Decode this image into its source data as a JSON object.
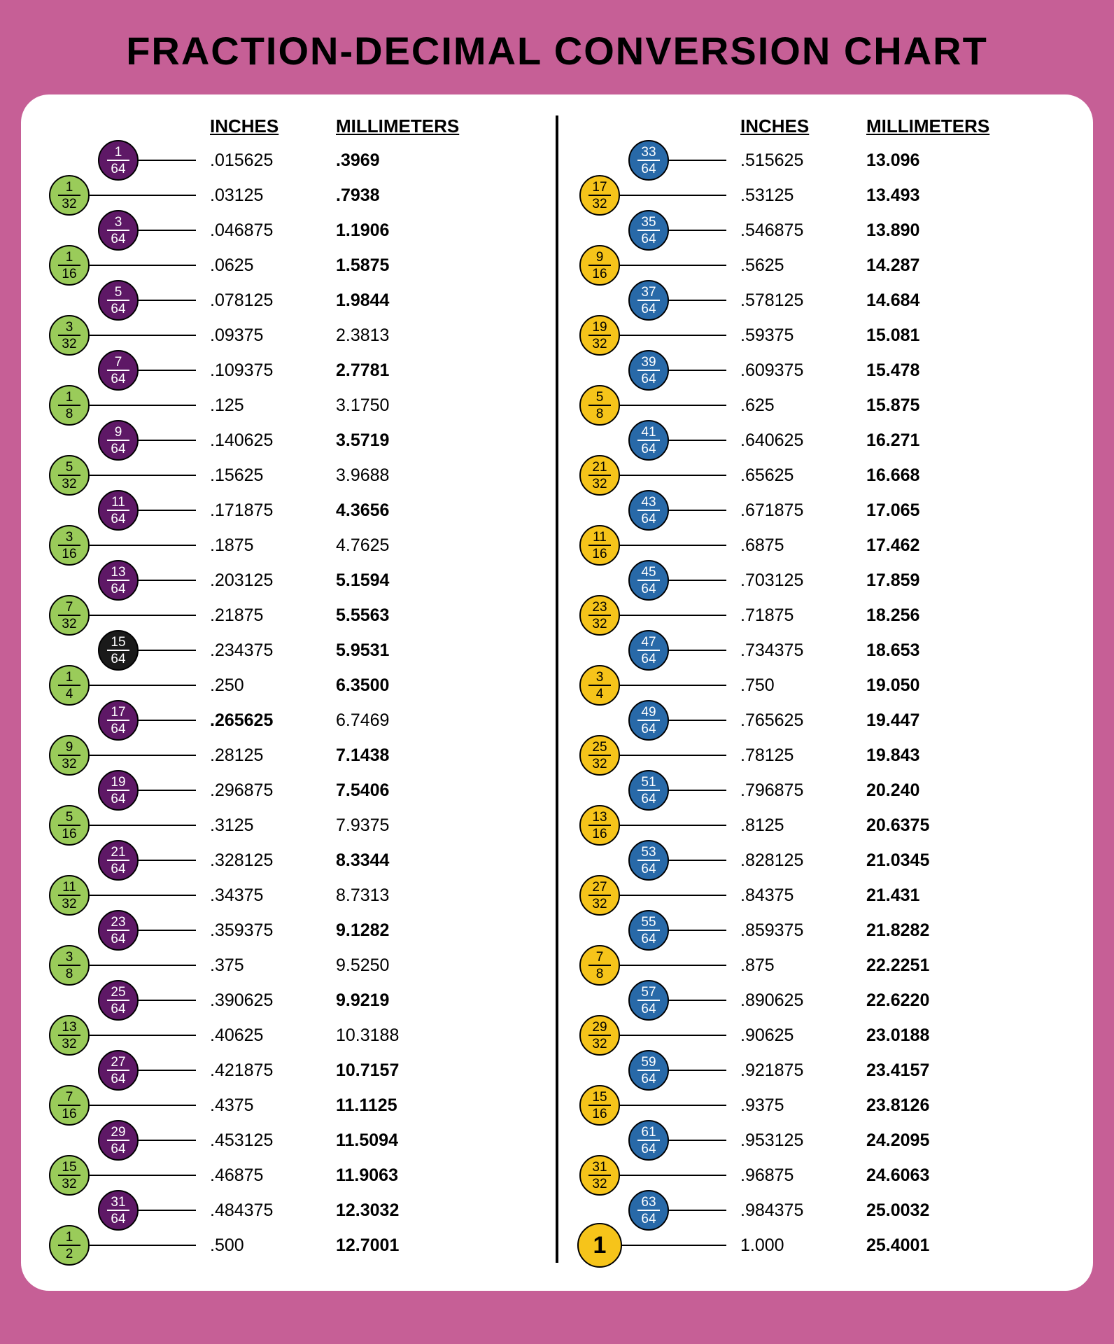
{
  "title": "FRACTION-DECIMAL CONVERSION CHART",
  "headers": {
    "inches": "INCHES",
    "mm": "MILLIMETERS"
  },
  "palette": {
    "green": {
      "fill": "#9acb5a",
      "stroke": "#000",
      "text": "#000",
      "bar": "#000"
    },
    "purple": {
      "fill": "#5e1866",
      "stroke": "#000",
      "text": "#fff",
      "bar": "#fff"
    },
    "black": {
      "fill": "#1a1a1a",
      "stroke": "#000",
      "text": "#fff",
      "bar": "#fff"
    },
    "yellow": {
      "fill": "#f6c41a",
      "stroke": "#000",
      "text": "#000",
      "bar": "#000"
    },
    "blue": {
      "fill": "#2869a8",
      "stroke": "#000",
      "text": "#fff",
      "bar": "#fff"
    }
  },
  "bg_color": "#c65f96",
  "panel_color": "#ffffff",
  "font_sizes": {
    "title": 56,
    "header": 26,
    "values": 25,
    "frac": 19
  },
  "left": [
    {
      "slot": 1,
      "n": "1",
      "d": "64",
      "color": "purple",
      "inches": ".015625",
      "mm": ".3969",
      "mb": true
    },
    {
      "slot": 0,
      "n": "1",
      "d": "32",
      "color": "green",
      "inches": ".03125",
      "mm": ".7938",
      "mb": true
    },
    {
      "slot": 1,
      "n": "3",
      "d": "64",
      "color": "purple",
      "inches": ".046875",
      "mm": "1.1906",
      "mb": true
    },
    {
      "slot": 0,
      "n": "1",
      "d": "16",
      "color": "green",
      "inches": ".0625",
      "mm": "1.5875",
      "mb": true
    },
    {
      "slot": 1,
      "n": "5",
      "d": "64",
      "color": "purple",
      "inches": ".078125",
      "mm": "1.9844",
      "mb": true
    },
    {
      "slot": 0,
      "n": "3",
      "d": "32",
      "color": "green",
      "inches": ".09375",
      "mm": "2.3813"
    },
    {
      "slot": 1,
      "n": "7",
      "d": "64",
      "color": "purple",
      "inches": ".109375",
      "mm": "2.7781",
      "mb": true
    },
    {
      "slot": 0,
      "n": "1",
      "d": "8",
      "color": "green",
      "inches": ".125",
      "mm": "3.1750"
    },
    {
      "slot": 1,
      "n": "9",
      "d": "64",
      "color": "purple",
      "inches": ".140625",
      "mm": "3.5719",
      "mb": true
    },
    {
      "slot": 0,
      "n": "5",
      "d": "32",
      "color": "green",
      "inches": ".15625",
      "mm": "3.9688"
    },
    {
      "slot": 1,
      "n": "11",
      "d": "64",
      "color": "purple",
      "inches": ".171875",
      "mm": "4.3656",
      "mb": true
    },
    {
      "slot": 0,
      "n": "3",
      "d": "16",
      "color": "green",
      "inches": ".1875",
      "mm": "4.7625"
    },
    {
      "slot": 1,
      "n": "13",
      "d": "64",
      "color": "purple",
      "inches": ".203125",
      "mm": "5.1594",
      "mb": true
    },
    {
      "slot": 0,
      "n": "7",
      "d": "32",
      "color": "green",
      "inches": ".21875",
      "mm": "5.5563",
      "mb": true
    },
    {
      "slot": 1,
      "n": "15",
      "d": "64",
      "color": "black",
      "inches": ".234375",
      "mm": "5.9531",
      "mb": true
    },
    {
      "slot": 0,
      "n": "1",
      "d": "4",
      "color": "green",
      "inches": ".250",
      "mm": "6.3500",
      "mb": true
    },
    {
      "slot": 1,
      "n": "17",
      "d": "64",
      "color": "purple",
      "inches": ".265625",
      "mm": "6.7469",
      "ib": true
    },
    {
      "slot": 0,
      "n": "9",
      "d": "32",
      "color": "green",
      "inches": ".28125",
      "mm": "7.1438",
      "mb": true
    },
    {
      "slot": 1,
      "n": "19",
      "d": "64",
      "color": "purple",
      "inches": ".296875",
      "mm": "7.5406",
      "mb": true
    },
    {
      "slot": 0,
      "n": "5",
      "d": "16",
      "color": "green",
      "inches": ".3125",
      "mm": "7.9375"
    },
    {
      "slot": 1,
      "n": "21",
      "d": "64",
      "color": "purple",
      "inches": ".328125",
      "mm": "8.3344",
      "mb": true
    },
    {
      "slot": 0,
      "n": "11",
      "d": "32",
      "color": "green",
      "inches": ".34375",
      "mm": "8.7313"
    },
    {
      "slot": 1,
      "n": "23",
      "d": "64",
      "color": "purple",
      "inches": ".359375",
      "mm": "9.1282",
      "mb": true
    },
    {
      "slot": 0,
      "n": "3",
      "d": "8",
      "color": "green",
      "inches": ".375",
      "mm": "9.5250"
    },
    {
      "slot": 1,
      "n": "25",
      "d": "64",
      "color": "purple",
      "inches": ".390625",
      "mm": "9.9219",
      "mb": true
    },
    {
      "slot": 0,
      "n": "13",
      "d": "32",
      "color": "green",
      "inches": ".40625",
      "mm": "10.3188"
    },
    {
      "slot": 1,
      "n": "27",
      "d": "64",
      "color": "purple",
      "inches": ".421875",
      "mm": "10.7157",
      "mb": true
    },
    {
      "slot": 0,
      "n": "7",
      "d": "16",
      "color": "green",
      "inches": ".4375",
      "mm": "11.1125",
      "mb": true
    },
    {
      "slot": 1,
      "n": "29",
      "d": "64",
      "color": "purple",
      "inches": ".453125",
      "mm": "11.5094",
      "mb": true
    },
    {
      "slot": 0,
      "n": "15",
      "d": "32",
      "color": "green",
      "inches": ".46875",
      "mm": "11.9063",
      "mb": true
    },
    {
      "slot": 1,
      "n": "31",
      "d": "64",
      "color": "purple",
      "inches": ".484375",
      "mm": "12.3032",
      "mb": true
    },
    {
      "slot": 0,
      "n": "1",
      "d": "2",
      "color": "green",
      "inches": ".500",
      "mm": "12.7001",
      "mb": true
    }
  ],
  "right": [
    {
      "slot": 1,
      "n": "33",
      "d": "64",
      "color": "blue",
      "inches": ".515625",
      "mm": "13.096",
      "mb": true
    },
    {
      "slot": 0,
      "n": "17",
      "d": "32",
      "color": "yellow",
      "inches": ".53125",
      "mm": "13.493",
      "mb": true
    },
    {
      "slot": 1,
      "n": "35",
      "d": "64",
      "color": "blue",
      "inches": ".546875",
      "mm": "13.890",
      "mb": true
    },
    {
      "slot": 0,
      "n": "9",
      "d": "16",
      "color": "yellow",
      "inches": ".5625",
      "mm": "14.287",
      "mb": true
    },
    {
      "slot": 1,
      "n": "37",
      "d": "64",
      "color": "blue",
      "inches": ".578125",
      "mm": "14.684",
      "mb": true
    },
    {
      "slot": 0,
      "n": "19",
      "d": "32",
      "color": "yellow",
      "inches": ".59375",
      "mm": "15.081",
      "mb": true
    },
    {
      "slot": 1,
      "n": "39",
      "d": "64",
      "color": "blue",
      "inches": ".609375",
      "mm": "15.478",
      "mb": true
    },
    {
      "slot": 0,
      "n": "5",
      "d": "8",
      "color": "yellow",
      "inches": ".625",
      "mm": "15.875",
      "mb": true
    },
    {
      "slot": 1,
      "n": "41",
      "d": "64",
      "color": "blue",
      "inches": ".640625",
      "mm": "16.271",
      "mb": true
    },
    {
      "slot": 0,
      "n": "21",
      "d": "32",
      "color": "yellow",
      "inches": ".65625",
      "mm": "16.668",
      "mb": true
    },
    {
      "slot": 1,
      "n": "43",
      "d": "64",
      "color": "blue",
      "inches": ".671875",
      "mm": "17.065",
      "mb": true
    },
    {
      "slot": 0,
      "n": "11",
      "d": "16",
      "color": "yellow",
      "inches": ".6875",
      "mm": "17.462",
      "mb": true
    },
    {
      "slot": 1,
      "n": "45",
      "d": "64",
      "color": "blue",
      "inches": ".703125",
      "mm": "17.859",
      "mb": true
    },
    {
      "slot": 0,
      "n": "23",
      "d": "32",
      "color": "yellow",
      "inches": ".71875",
      "mm": "18.256",
      "mb": true
    },
    {
      "slot": 1,
      "n": "47",
      "d": "64",
      "color": "blue",
      "inches": ".734375",
      "mm": "18.653",
      "mb": true
    },
    {
      "slot": 0,
      "n": "3",
      "d": "4",
      "color": "yellow",
      "inches": ".750",
      "mm": "19.050",
      "mb": true
    },
    {
      "slot": 1,
      "n": "49",
      "d": "64",
      "color": "blue",
      "inches": ".765625",
      "mm": "19.447",
      "mb": true
    },
    {
      "slot": 0,
      "n": "25",
      "d": "32",
      "color": "yellow",
      "inches": ".78125",
      "mm": "19.843",
      "mb": true
    },
    {
      "slot": 1,
      "n": "51",
      "d": "64",
      "color": "blue",
      "inches": ".796875",
      "mm": "20.240",
      "mb": true
    },
    {
      "slot": 0,
      "n": "13",
      "d": "16",
      "color": "yellow",
      "inches": ".8125",
      "mm": "20.6375",
      "mb": true
    },
    {
      "slot": 1,
      "n": "53",
      "d": "64",
      "color": "blue",
      "inches": ".828125",
      "mm": "21.0345",
      "mb": true
    },
    {
      "slot": 0,
      "n": "27",
      "d": "32",
      "color": "yellow",
      "inches": ".84375",
      "mm": "21.431",
      "mb": true
    },
    {
      "slot": 1,
      "n": "55",
      "d": "64",
      "color": "blue",
      "inches": ".859375",
      "mm": "21.8282",
      "mb": true
    },
    {
      "slot": 0,
      "n": "7",
      "d": "8",
      "color": "yellow",
      "inches": ".875",
      "mm": "22.2251",
      "mb": true
    },
    {
      "slot": 1,
      "n": "57",
      "d": "64",
      "color": "blue",
      "inches": ".890625",
      "mm": "22.6220",
      "mb": true
    },
    {
      "slot": 0,
      "n": "29",
      "d": "32",
      "color": "yellow",
      "inches": ".90625",
      "mm": "23.0188",
      "mb": true
    },
    {
      "slot": 1,
      "n": "59",
      "d": "64",
      "color": "blue",
      "inches": ".921875",
      "mm": "23.4157",
      "mb": true
    },
    {
      "slot": 0,
      "n": "15",
      "d": "16",
      "color": "yellow",
      "inches": ".9375",
      "mm": "23.8126",
      "mb": true
    },
    {
      "slot": 1,
      "n": "61",
      "d": "64",
      "color": "blue",
      "inches": ".953125",
      "mm": "24.2095",
      "mb": true
    },
    {
      "slot": 0,
      "n": "31",
      "d": "32",
      "color": "yellow",
      "inches": ".96875",
      "mm": "24.6063",
      "mb": true
    },
    {
      "slot": 1,
      "n": "63",
      "d": "64",
      "color": "blue",
      "inches": ".984375",
      "mm": "25.0032",
      "mb": true
    },
    {
      "slot": 0,
      "n": "1",
      "d": "",
      "color": "yellow",
      "inches": "1.000",
      "mm": "25.4001",
      "mb": true,
      "big": true
    }
  ]
}
